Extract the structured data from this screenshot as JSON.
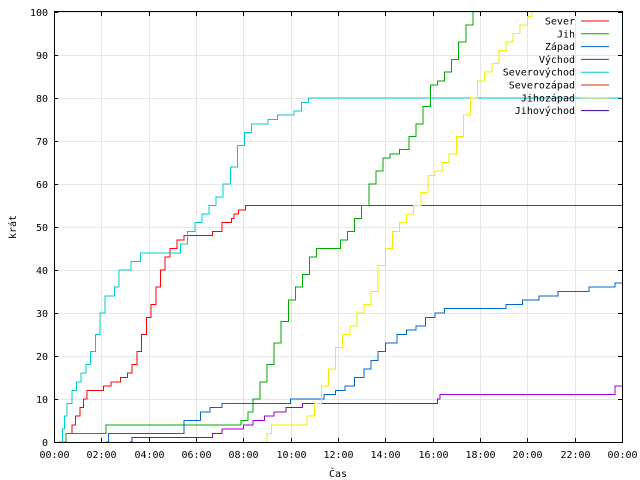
{
  "chart_data": {
    "type": "line",
    "xlabel": "Čas",
    "ylabel": "krát",
    "xlim": [
      0,
      24
    ],
    "ylim": [
      0,
      100
    ],
    "grid": true,
    "legend_placement": "top-right",
    "x_ticks": [
      "00:00",
      "02:00",
      "04:00",
      "06:00",
      "08:00",
      "10:00",
      "12:00",
      "14:00",
      "16:00",
      "18:00",
      "20:00",
      "22:00",
      "00:00"
    ],
    "y_ticks": [
      "0",
      "10",
      "20",
      "30",
      "40",
      "50",
      "60",
      "70",
      "80",
      "90",
      "100"
    ],
    "series": [
      {
        "name": "Sever",
        "color": "#ff0000",
        "points": [
          [
            0.45,
            0
          ],
          [
            0.5,
            2
          ],
          [
            0.75,
            4
          ],
          [
            0.9,
            6
          ],
          [
            1.1,
            8
          ],
          [
            1.25,
            10
          ],
          [
            1.4,
            12
          ],
          [
            2.1,
            13
          ],
          [
            2.4,
            14
          ],
          [
            2.8,
            15
          ],
          [
            3.1,
            16
          ],
          [
            3.3,
            18
          ],
          [
            3.5,
            21
          ],
          [
            3.7,
            25
          ],
          [
            3.9,
            29
          ],
          [
            4.1,
            32
          ],
          [
            4.3,
            36
          ],
          [
            4.5,
            40
          ],
          [
            4.7,
            43
          ],
          [
            4.9,
            45
          ],
          [
            5.2,
            47
          ],
          [
            5.5,
            48
          ],
          [
            6.7,
            49
          ],
          [
            7.1,
            51
          ],
          [
            7.5,
            52
          ],
          [
            7.6,
            53
          ],
          [
            7.8,
            54
          ],
          [
            8.1,
            55
          ],
          [
            24,
            55
          ]
        ]
      },
      {
        "name": "Jih",
        "color": "#00aa00",
        "points": [
          [
            0.4,
            0
          ],
          [
            0.5,
            2
          ],
          [
            2.2,
            4
          ],
          [
            7.9,
            5
          ],
          [
            8.2,
            7
          ],
          [
            8.4,
            10
          ],
          [
            8.7,
            14
          ],
          [
            9.0,
            18
          ],
          [
            9.3,
            23
          ],
          [
            9.6,
            28
          ],
          [
            9.9,
            33
          ],
          [
            10.2,
            36
          ],
          [
            10.5,
            39
          ],
          [
            10.8,
            43
          ],
          [
            11.1,
            45
          ],
          [
            11.6,
            45
          ],
          [
            12.1,
            47
          ],
          [
            12.4,
            49
          ],
          [
            12.7,
            52
          ],
          [
            13.0,
            55
          ],
          [
            13.3,
            60
          ],
          [
            13.6,
            63
          ],
          [
            13.9,
            66
          ],
          [
            14.2,
            67
          ],
          [
            14.6,
            68
          ],
          [
            15.0,
            71
          ],
          [
            15.3,
            74
          ],
          [
            15.6,
            78
          ],
          [
            15.9,
            83
          ],
          [
            16.2,
            84
          ],
          [
            16.5,
            86
          ],
          [
            16.8,
            89
          ],
          [
            17.1,
            93
          ],
          [
            17.4,
            97
          ],
          [
            17.7,
            100
          ]
        ]
      },
      {
        "name": "Západ",
        "color": "#0066cc",
        "points": [
          [
            2.2,
            0
          ],
          [
            2.3,
            2
          ],
          [
            5.5,
            5
          ],
          [
            6.2,
            7
          ],
          [
            6.6,
            8
          ],
          [
            7.1,
            9
          ],
          [
            9.8,
            9
          ],
          [
            10.0,
            10
          ],
          [
            11.1,
            10
          ],
          [
            11.4,
            11
          ],
          [
            11.9,
            12
          ],
          [
            12.3,
            13
          ],
          [
            12.7,
            15
          ],
          [
            13.1,
            17
          ],
          [
            13.4,
            19
          ],
          [
            13.7,
            21
          ],
          [
            14.0,
            23
          ],
          [
            14.5,
            25
          ],
          [
            14.9,
            26
          ],
          [
            15.3,
            27
          ],
          [
            15.7,
            29
          ],
          [
            16.1,
            30
          ],
          [
            16.5,
            31
          ],
          [
            18.7,
            31
          ],
          [
            19.1,
            32
          ],
          [
            19.8,
            33
          ],
          [
            20.5,
            34
          ],
          [
            21.3,
            35
          ],
          [
            22.6,
            36
          ],
          [
            23.7,
            37
          ],
          [
            24,
            37
          ]
        ]
      },
      {
        "name": "Východ",
        "color": "#9900cc",
        "points": [
          [
            3.2,
            0
          ],
          [
            3.3,
            1
          ],
          [
            6.7,
            2
          ],
          [
            7.1,
            3
          ],
          [
            8.0,
            4
          ],
          [
            8.4,
            5
          ],
          [
            8.9,
            6
          ],
          [
            9.3,
            7
          ],
          [
            9.8,
            8
          ],
          [
            10.5,
            9
          ],
          [
            11.2,
            9
          ],
          [
            16.2,
            10
          ],
          [
            16.3,
            11
          ],
          [
            23.5,
            11
          ],
          [
            23.7,
            13
          ],
          [
            24,
            13
          ]
        ]
      },
      {
        "name": "Severovýchod",
        "color": "#00cccc",
        "points": [
          [
            0.2,
            0
          ],
          [
            0.35,
            3
          ],
          [
            0.45,
            6
          ],
          [
            0.55,
            9
          ],
          [
            0.75,
            12
          ],
          [
            0.95,
            14
          ],
          [
            1.15,
            16
          ],
          [
            1.35,
            18
          ],
          [
            1.55,
            21
          ],
          [
            1.75,
            25
          ],
          [
            1.95,
            30
          ],
          [
            2.15,
            34
          ],
          [
            2.55,
            36
          ],
          [
            2.75,
            40
          ],
          [
            3.25,
            42
          ],
          [
            3.65,
            44
          ],
          [
            5.05,
            44
          ],
          [
            5.35,
            46
          ],
          [
            5.65,
            49
          ],
          [
            5.95,
            51
          ],
          [
            6.25,
            53
          ],
          [
            6.55,
            55
          ],
          [
            6.85,
            57
          ],
          [
            7.15,
            60
          ],
          [
            7.45,
            64
          ],
          [
            7.75,
            69
          ],
          [
            8.05,
            72
          ],
          [
            8.35,
            74
          ],
          [
            9.05,
            75
          ],
          [
            9.45,
            76
          ],
          [
            10.15,
            77
          ],
          [
            10.45,
            79
          ],
          [
            10.75,
            80
          ],
          [
            24,
            80
          ]
        ]
      },
      {
        "name": "Severozápad",
        "color": "#cc3300",
        "points": []
      },
      {
        "name": "Jihozápad",
        "color": "#eeee00",
        "points": [
          [
            8.8,
            0
          ],
          [
            9.0,
            2
          ],
          [
            9.2,
            4
          ],
          [
            10.4,
            4
          ],
          [
            10.7,
            6
          ],
          [
            11.0,
            9
          ],
          [
            11.3,
            13
          ],
          [
            11.6,
            17
          ],
          [
            11.9,
            22
          ],
          [
            12.2,
            25
          ],
          [
            12.5,
            27
          ],
          [
            12.8,
            30
          ],
          [
            13.1,
            32
          ],
          [
            13.4,
            35
          ],
          [
            13.7,
            41
          ],
          [
            14.0,
            45
          ],
          [
            14.3,
            49
          ],
          [
            14.6,
            51
          ],
          [
            14.9,
            53
          ],
          [
            15.2,
            55
          ],
          [
            15.5,
            58
          ],
          [
            15.8,
            62
          ],
          [
            16.1,
            63
          ],
          [
            16.4,
            65
          ],
          [
            16.7,
            67
          ],
          [
            17.0,
            71
          ],
          [
            17.3,
            76
          ],
          [
            17.6,
            80
          ],
          [
            17.9,
            84
          ],
          [
            18.2,
            86
          ],
          [
            18.5,
            88
          ],
          [
            18.8,
            91
          ],
          [
            19.1,
            93
          ],
          [
            19.4,
            95
          ],
          [
            19.7,
            97
          ],
          [
            20.0,
            99
          ],
          [
            20.2,
            100
          ]
        ]
      },
      {
        "name": "Jihovýchod",
        "color": "#330099",
        "points": []
      }
    ]
  }
}
